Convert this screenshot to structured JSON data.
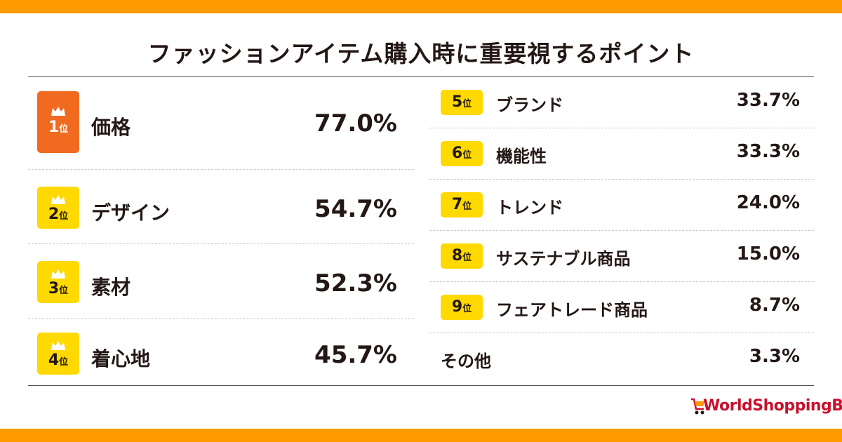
{
  "title": "ファッションアイテム購入時に重要視するポイント",
  "rank_unit": "位",
  "colors": {
    "accent_bar": "#ff9a00",
    "first_badge": "#f06a1f",
    "badge": "#ffd900",
    "text": "#231815",
    "logo": "#c8102e"
  },
  "icons": {
    "badge_icon": "crown-icon",
    "logo_icon": "shopping-cart-icon"
  },
  "chart_data": {
    "type": "table",
    "title": "ファッションアイテム購入時に重要視するポイント",
    "rows": [
      {
        "rank": "1",
        "label": "価格",
        "value": "77.0%"
      },
      {
        "rank": "2",
        "label": "デザイン",
        "value": "54.7%"
      },
      {
        "rank": "3",
        "label": "素材",
        "value": "52.3%"
      },
      {
        "rank": "4",
        "label": "着心地",
        "value": "45.7%"
      },
      {
        "rank": "5",
        "label": "ブランド",
        "value": "33.7%"
      },
      {
        "rank": "6",
        "label": "機能性",
        "value": "33.3%"
      },
      {
        "rank": "7",
        "label": "トレンド",
        "value": "24.0%"
      },
      {
        "rank": "8",
        "label": "サステナブル商品",
        "value": "15.0%"
      },
      {
        "rank": "9",
        "label": "フェアトレード商品",
        "value": "8.7%"
      },
      {
        "rank": "",
        "label": "その他",
        "value": "3.3%"
      }
    ]
  },
  "logo": {
    "text": "WorldShoppingBIZ"
  }
}
